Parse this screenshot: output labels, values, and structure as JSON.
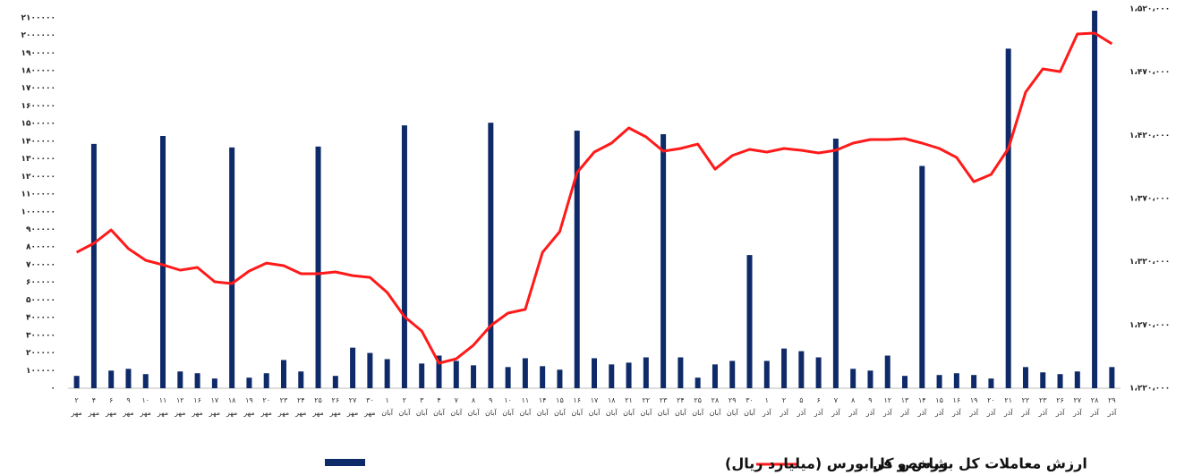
{
  "chart_data": {
    "type": "bar-line",
    "categories": [
      "۲ مهر",
      "۴ مهر",
      "۶ مهر",
      "۹ مهر",
      "۱۰ مهر",
      "۱۱ مهر",
      "۱۲ مهر",
      "۱۶ مهر",
      "۱۷ مهر",
      "۱۸ مهر",
      "۱۹ مهر",
      "۲۰ مهر",
      "۲۳ مهر",
      "۲۴ مهر",
      "۲۵ مهر",
      "۲۶ مهر",
      "۲۷ مهر",
      "۳۰ مهر",
      "۱ آبان",
      "۲ آبان",
      "۳ آبان",
      "۴ آبان",
      "۷ آبان",
      "۸ آبان",
      "۹ آبان",
      "۱۰ آبان",
      "۱۱ آبان",
      "۱۴ آبان",
      "۱۵ آبان",
      "۱۶ آبان",
      "۱۷ آبان",
      "۱۸ آبان",
      "۲۱ آبان",
      "۲۲ آبان",
      "۲۳ آبان",
      "۲۴ آبان",
      "۲۵ آبان",
      "۲۸ آبان",
      "۲۹ آبان",
      "۳۰ آبان",
      "۱ آذر",
      "۲ آذر",
      "۵ آذر",
      "۶ آذر",
      "۷ آذر",
      "۸ آذر",
      "۹ آذر",
      "۱۲ آذر",
      "۱۳ آذر",
      "۱۴ آذر",
      "۱۵ آذر",
      "۱۶ آذر",
      "۱۹ آذر",
      "۲۰ آذر",
      "۲۱ آذر",
      "۲۲ آذر",
      "۲۳ آذر",
      "۲۶ آذر",
      "۲۷ آذر",
      "۲۸ آذر",
      "۲۹ آذر"
    ],
    "series": [
      {
        "name": "ارزش معاملات کل بورس و فرابورس (میلیارد ریال)",
        "type": "bar",
        "color": "#0f2a68",
        "values": [
          70000,
          1385000,
          100000,
          110000,
          80000,
          1430000,
          95000,
          85000,
          55000,
          1365000,
          60000,
          85000,
          160000,
          95000,
          1370000,
          70000,
          230000,
          200000,
          165000,
          1490000,
          140000,
          185000,
          155000,
          130000,
          1505000,
          120000,
          170000,
          125000,
          105000,
          1460000,
          170000,
          135000,
          145000,
          175000,
          1440000,
          175000,
          60000,
          135000,
          155000,
          755000,
          155000,
          225000,
          210000,
          175000,
          1415000,
          110000,
          100000,
          185000,
          70000,
          1260000,
          75000,
          85000,
          75000,
          55000,
          1925000,
          120000,
          90000,
          80000,
          95000,
          2140000,
          120000
        ]
      },
      {
        "name": "شاخص کل",
        "type": "line",
        "axis": "y2",
        "color": "#ff1a1a",
        "values": [
          1327500,
          1334600,
          1345200,
          1330400,
          1321200,
          1317600,
          1313400,
          1315500,
          1304200,
          1302800,
          1312700,
          1319000,
          1316900,
          1310600,
          1310600,
          1312000,
          1309100,
          1307700,
          1295700,
          1276600,
          1265300,
          1239800,
          1243300,
          1254000,
          1269500,
          1279400,
          1282300,
          1327500,
          1343800,
          1390500,
          1406800,
          1413900,
          1425900,
          1418800,
          1407500,
          1409600,
          1413100,
          1393300,
          1404000,
          1408900,
          1406800,
          1409600,
          1408200,
          1406100,
          1408200,
          1413900,
          1416700,
          1416700,
          1417400,
          1413900,
          1409600,
          1402500,
          1383400,
          1389100,
          1409600,
          1454200,
          1472600,
          1470400,
          1500200,
          1500900,
          1492400
        ]
      }
    ],
    "ylim": [
      0,
      2150000
    ],
    "yticks": [
      {
        "value": 0,
        "label": "۰"
      },
      {
        "value": 100000,
        "label": "۱۰۰۰۰۰"
      },
      {
        "value": 200000,
        "label": "۲۰۰۰۰۰"
      },
      {
        "value": 300000,
        "label": "۳۰۰۰۰۰"
      },
      {
        "value": 400000,
        "label": "۴۰۰۰۰۰"
      },
      {
        "value": 500000,
        "label": "۵۰۰۰۰۰"
      },
      {
        "value": 600000,
        "label": "۶۰۰۰۰۰"
      },
      {
        "value": 700000,
        "label": "۷۰۰۰۰۰"
      },
      {
        "value": 800000,
        "label": "۸۰۰۰۰۰"
      },
      {
        "value": 900000,
        "label": "۹۰۰۰۰۰"
      },
      {
        "value": 1000000,
        "label": "۱۰۰۰۰۰۰"
      },
      {
        "value": 1100000,
        "label": "۱۱۰۰۰۰۰"
      },
      {
        "value": 1200000,
        "label": "۱۲۰۰۰۰۰"
      },
      {
        "value": 1300000,
        "label": "۱۳۰۰۰۰۰"
      },
      {
        "value": 1400000,
        "label": "۱۴۰۰۰۰۰"
      },
      {
        "value": 1500000,
        "label": "۱۵۰۰۰۰۰"
      },
      {
        "value": 1600000,
        "label": "۱۶۰۰۰۰۰"
      },
      {
        "value": 1700000,
        "label": "۱۷۰۰۰۰۰"
      },
      {
        "value": 1800000,
        "label": "۱۸۰۰۰۰۰"
      },
      {
        "value": 1900000,
        "label": "۱۹۰۰۰۰۰"
      },
      {
        "value": 2000000,
        "label": "۲۰۰۰۰۰۰"
      },
      {
        "value": 2100000,
        "label": "۲۱۰۰۰۰۰"
      }
    ],
    "y2lim": [
      1220000,
      1520000
    ],
    "y2ticks": [
      {
        "value": 1220000,
        "label": "۱،۲۲۰،۰۰۰"
      },
      {
        "value": 1270000,
        "label": "۱،۲۷۰،۰۰۰"
      },
      {
        "value": 1320000,
        "label": "۱،۳۲۰،۰۰۰"
      },
      {
        "value": 1370000,
        "label": "۱،۳۷۰،۰۰۰"
      },
      {
        "value": 1420000,
        "label": "۱،۴۲۰،۰۰۰"
      },
      {
        "value": 1470000,
        "label": "۱،۴۷۰،۰۰۰"
      },
      {
        "value": 1520000,
        "label": "۱،۵۲۰،۰۰۰"
      }
    ],
    "grid": false
  }
}
